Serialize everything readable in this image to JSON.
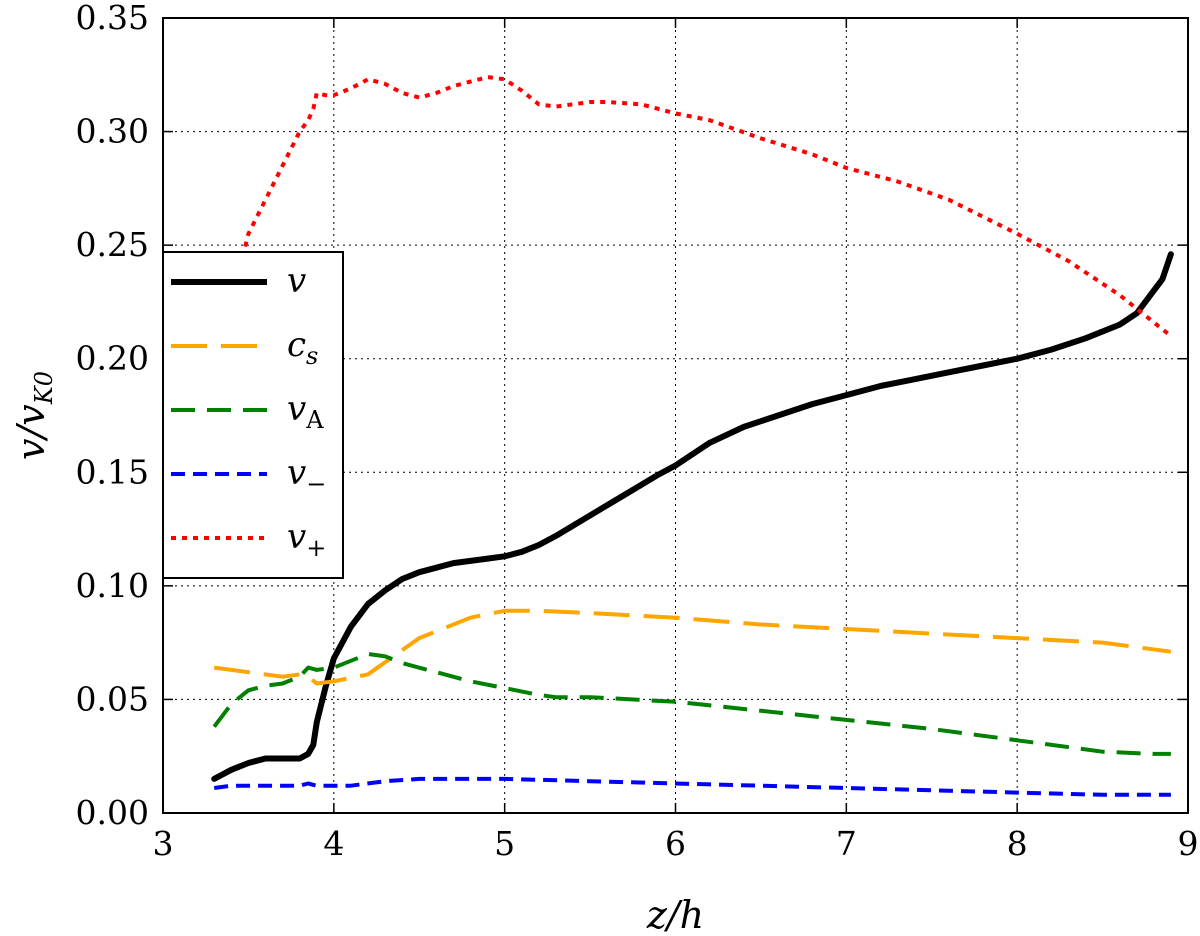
{
  "chart_data": {
    "type": "line",
    "xlabel": "z/h",
    "ylabel": "v/v_K0",
    "xlim": [
      3,
      9
    ],
    "ylim": [
      0,
      0.35
    ],
    "xticks": [
      3,
      4,
      5,
      6,
      7,
      8,
      9
    ],
    "xtick_labels": [
      "3",
      "4",
      "5",
      "6",
      "7",
      "8",
      "9"
    ],
    "yticks": [
      0.0,
      0.05,
      0.1,
      0.15,
      0.2,
      0.25,
      0.3,
      0.35
    ],
    "ytick_labels": [
      "0.00",
      "0.05",
      "0.10",
      "0.15",
      "0.20",
      "0.25",
      "0.30",
      "0.35"
    ],
    "grid": true,
    "legend_position": "center-left",
    "series": [
      {
        "name": "v",
        "base": "v",
        "sub": "",
        "color": "#000000",
        "dash": "",
        "x": [
          3.3,
          3.4,
          3.5,
          3.6,
          3.7,
          3.8,
          3.85,
          3.88,
          3.9,
          3.95,
          4.0,
          4.1,
          4.2,
          4.3,
          4.4,
          4.5,
          4.6,
          4.7,
          4.8,
          4.9,
          5.0,
          5.1,
          5.2,
          5.3,
          5.5,
          5.7,
          5.9,
          6.0,
          6.2,
          6.4,
          6.6,
          6.8,
          7.0,
          7.2,
          7.4,
          7.6,
          7.8,
          8.0,
          8.2,
          8.4,
          8.6,
          8.7,
          8.75,
          8.8,
          8.85,
          8.9
        ],
        "y": [
          0.015,
          0.019,
          0.022,
          0.024,
          0.024,
          0.024,
          0.026,
          0.03,
          0.04,
          0.055,
          0.068,
          0.082,
          0.092,
          0.098,
          0.103,
          0.106,
          0.108,
          0.11,
          0.111,
          0.112,
          0.113,
          0.115,
          0.118,
          0.122,
          0.131,
          0.14,
          0.149,
          0.153,
          0.163,
          0.17,
          0.175,
          0.18,
          0.184,
          0.188,
          0.191,
          0.194,
          0.197,
          0.2,
          0.204,
          0.209,
          0.215,
          0.22,
          0.225,
          0.23,
          0.235,
          0.246
        ]
      },
      {
        "name": "c_s",
        "base": "c",
        "sub": "s",
        "color": "#ffa500",
        "dash": "36,14",
        "x": [
          3.3,
          3.5,
          3.7,
          3.8,
          3.85,
          3.9,
          4.0,
          4.2,
          4.5,
          4.8,
          5.0,
          5.2,
          5.5,
          6.0,
          6.5,
          7.0,
          7.5,
          8.0,
          8.5,
          8.9
        ],
        "y": [
          0.064,
          0.062,
          0.06,
          0.061,
          0.06,
          0.057,
          0.058,
          0.061,
          0.077,
          0.086,
          0.089,
          0.089,
          0.088,
          0.086,
          0.083,
          0.081,
          0.079,
          0.077,
          0.075,
          0.071
        ]
      },
      {
        "name": "v_A",
        "base": "v",
        "sub": "A",
        "color": "#008000",
        "dash": "24,12",
        "x": [
          3.3,
          3.4,
          3.5,
          3.6,
          3.7,
          3.8,
          3.85,
          3.9,
          4.0,
          4.1,
          4.2,
          4.3,
          4.4,
          4.6,
          4.8,
          5.0,
          5.2,
          5.3,
          5.5,
          6.0,
          6.5,
          7.0,
          7.5,
          8.0,
          8.5,
          8.8,
          8.9
        ],
        "y": [
          0.038,
          0.048,
          0.054,
          0.056,
          0.057,
          0.06,
          0.064,
          0.063,
          0.064,
          0.067,
          0.07,
          0.069,
          0.066,
          0.062,
          0.058,
          0.055,
          0.052,
          0.051,
          0.051,
          0.049,
          0.045,
          0.041,
          0.037,
          0.032,
          0.027,
          0.026,
          0.026
        ]
      },
      {
        "name": "v_-",
        "base": "v",
        "sub": "−",
        "color": "#0000ff",
        "dash": "14,8",
        "x": [
          3.3,
          3.4,
          3.5,
          3.7,
          3.8,
          3.85,
          3.9,
          4.0,
          4.1,
          4.3,
          4.5,
          4.7,
          5.0,
          5.5,
          6.0,
          6.5,
          7.0,
          7.5,
          8.0,
          8.5,
          8.9
        ],
        "y": [
          0.011,
          0.012,
          0.012,
          0.012,
          0.012,
          0.013,
          0.012,
          0.012,
          0.012,
          0.014,
          0.015,
          0.015,
          0.015,
          0.014,
          0.013,
          0.012,
          0.011,
          0.01,
          0.009,
          0.008,
          0.008
        ]
      },
      {
        "name": "v_+",
        "base": "v",
        "sub": "+",
        "color": "#ff0000",
        "dash": "5,6",
        "x": [
          3.45,
          3.5,
          3.6,
          3.7,
          3.8,
          3.85,
          3.88,
          3.9,
          3.95,
          4.0,
          4.1,
          4.2,
          4.3,
          4.4,
          4.5,
          4.6,
          4.7,
          4.8,
          4.9,
          5.0,
          5.1,
          5.2,
          5.3,
          5.4,
          5.5,
          5.6,
          5.8,
          6.0,
          6.2,
          6.5,
          6.8,
          7.0,
          7.3,
          7.6,
          8.0,
          8.3,
          8.6,
          8.9
        ],
        "y": [
          0.24,
          0.255,
          0.27,
          0.285,
          0.3,
          0.305,
          0.31,
          0.317,
          0.316,
          0.316,
          0.319,
          0.323,
          0.321,
          0.317,
          0.315,
          0.317,
          0.32,
          0.322,
          0.324,
          0.323,
          0.318,
          0.312,
          0.311,
          0.312,
          0.313,
          0.313,
          0.312,
          0.308,
          0.305,
          0.297,
          0.29,
          0.284,
          0.278,
          0.27,
          0.255,
          0.243,
          0.228,
          0.21
        ]
      }
    ]
  }
}
